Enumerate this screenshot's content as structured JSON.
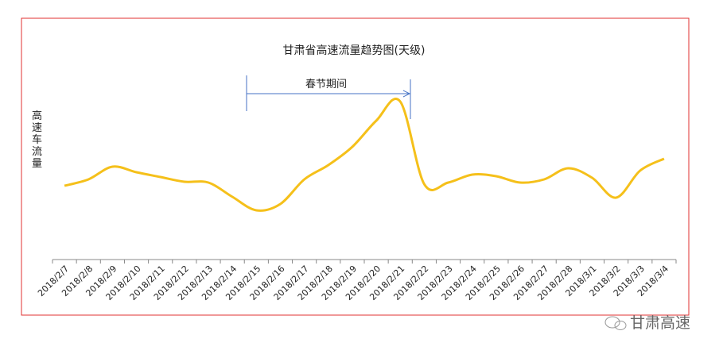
{
  "chart_data": {
    "type": "line",
    "title": "甘肃省高速流量趋势图(天级)",
    "y_label": "高速车流量",
    "annotation": "春节期间",
    "watermark": "甘肃高速",
    "categories": [
      "2018/2/7",
      "2018/2/8",
      "2018/2/9",
      "2018/2/10",
      "2018/2/11",
      "2018/2/12",
      "2018/2/13",
      "2018/2/14",
      "2018/2/15",
      "2018/2/16",
      "2018/2/17",
      "2018/2/18",
      "2018/2/19",
      "2018/2/20",
      "2018/2/21",
      "2018/2/22",
      "2018/2/23",
      "2018/2/24",
      "2018/2/25",
      "2018/2/26",
      "2018/2/27",
      "2018/2/28",
      "2018/3/1",
      "2018/3/2",
      "2018/3/3",
      "2018/3/4"
    ],
    "series": [
      {
        "name": "高速车流量",
        "color": "#f5c01a",
        "values": [
          93,
          101,
          117,
          110,
          104,
          98,
          97,
          79,
          62,
          70,
          101,
          119,
          142,
          175,
          199,
          95,
          97,
          107,
          105,
          97,
          101,
          115,
          103,
          78,
          112,
          127
        ]
      }
    ]
  }
}
